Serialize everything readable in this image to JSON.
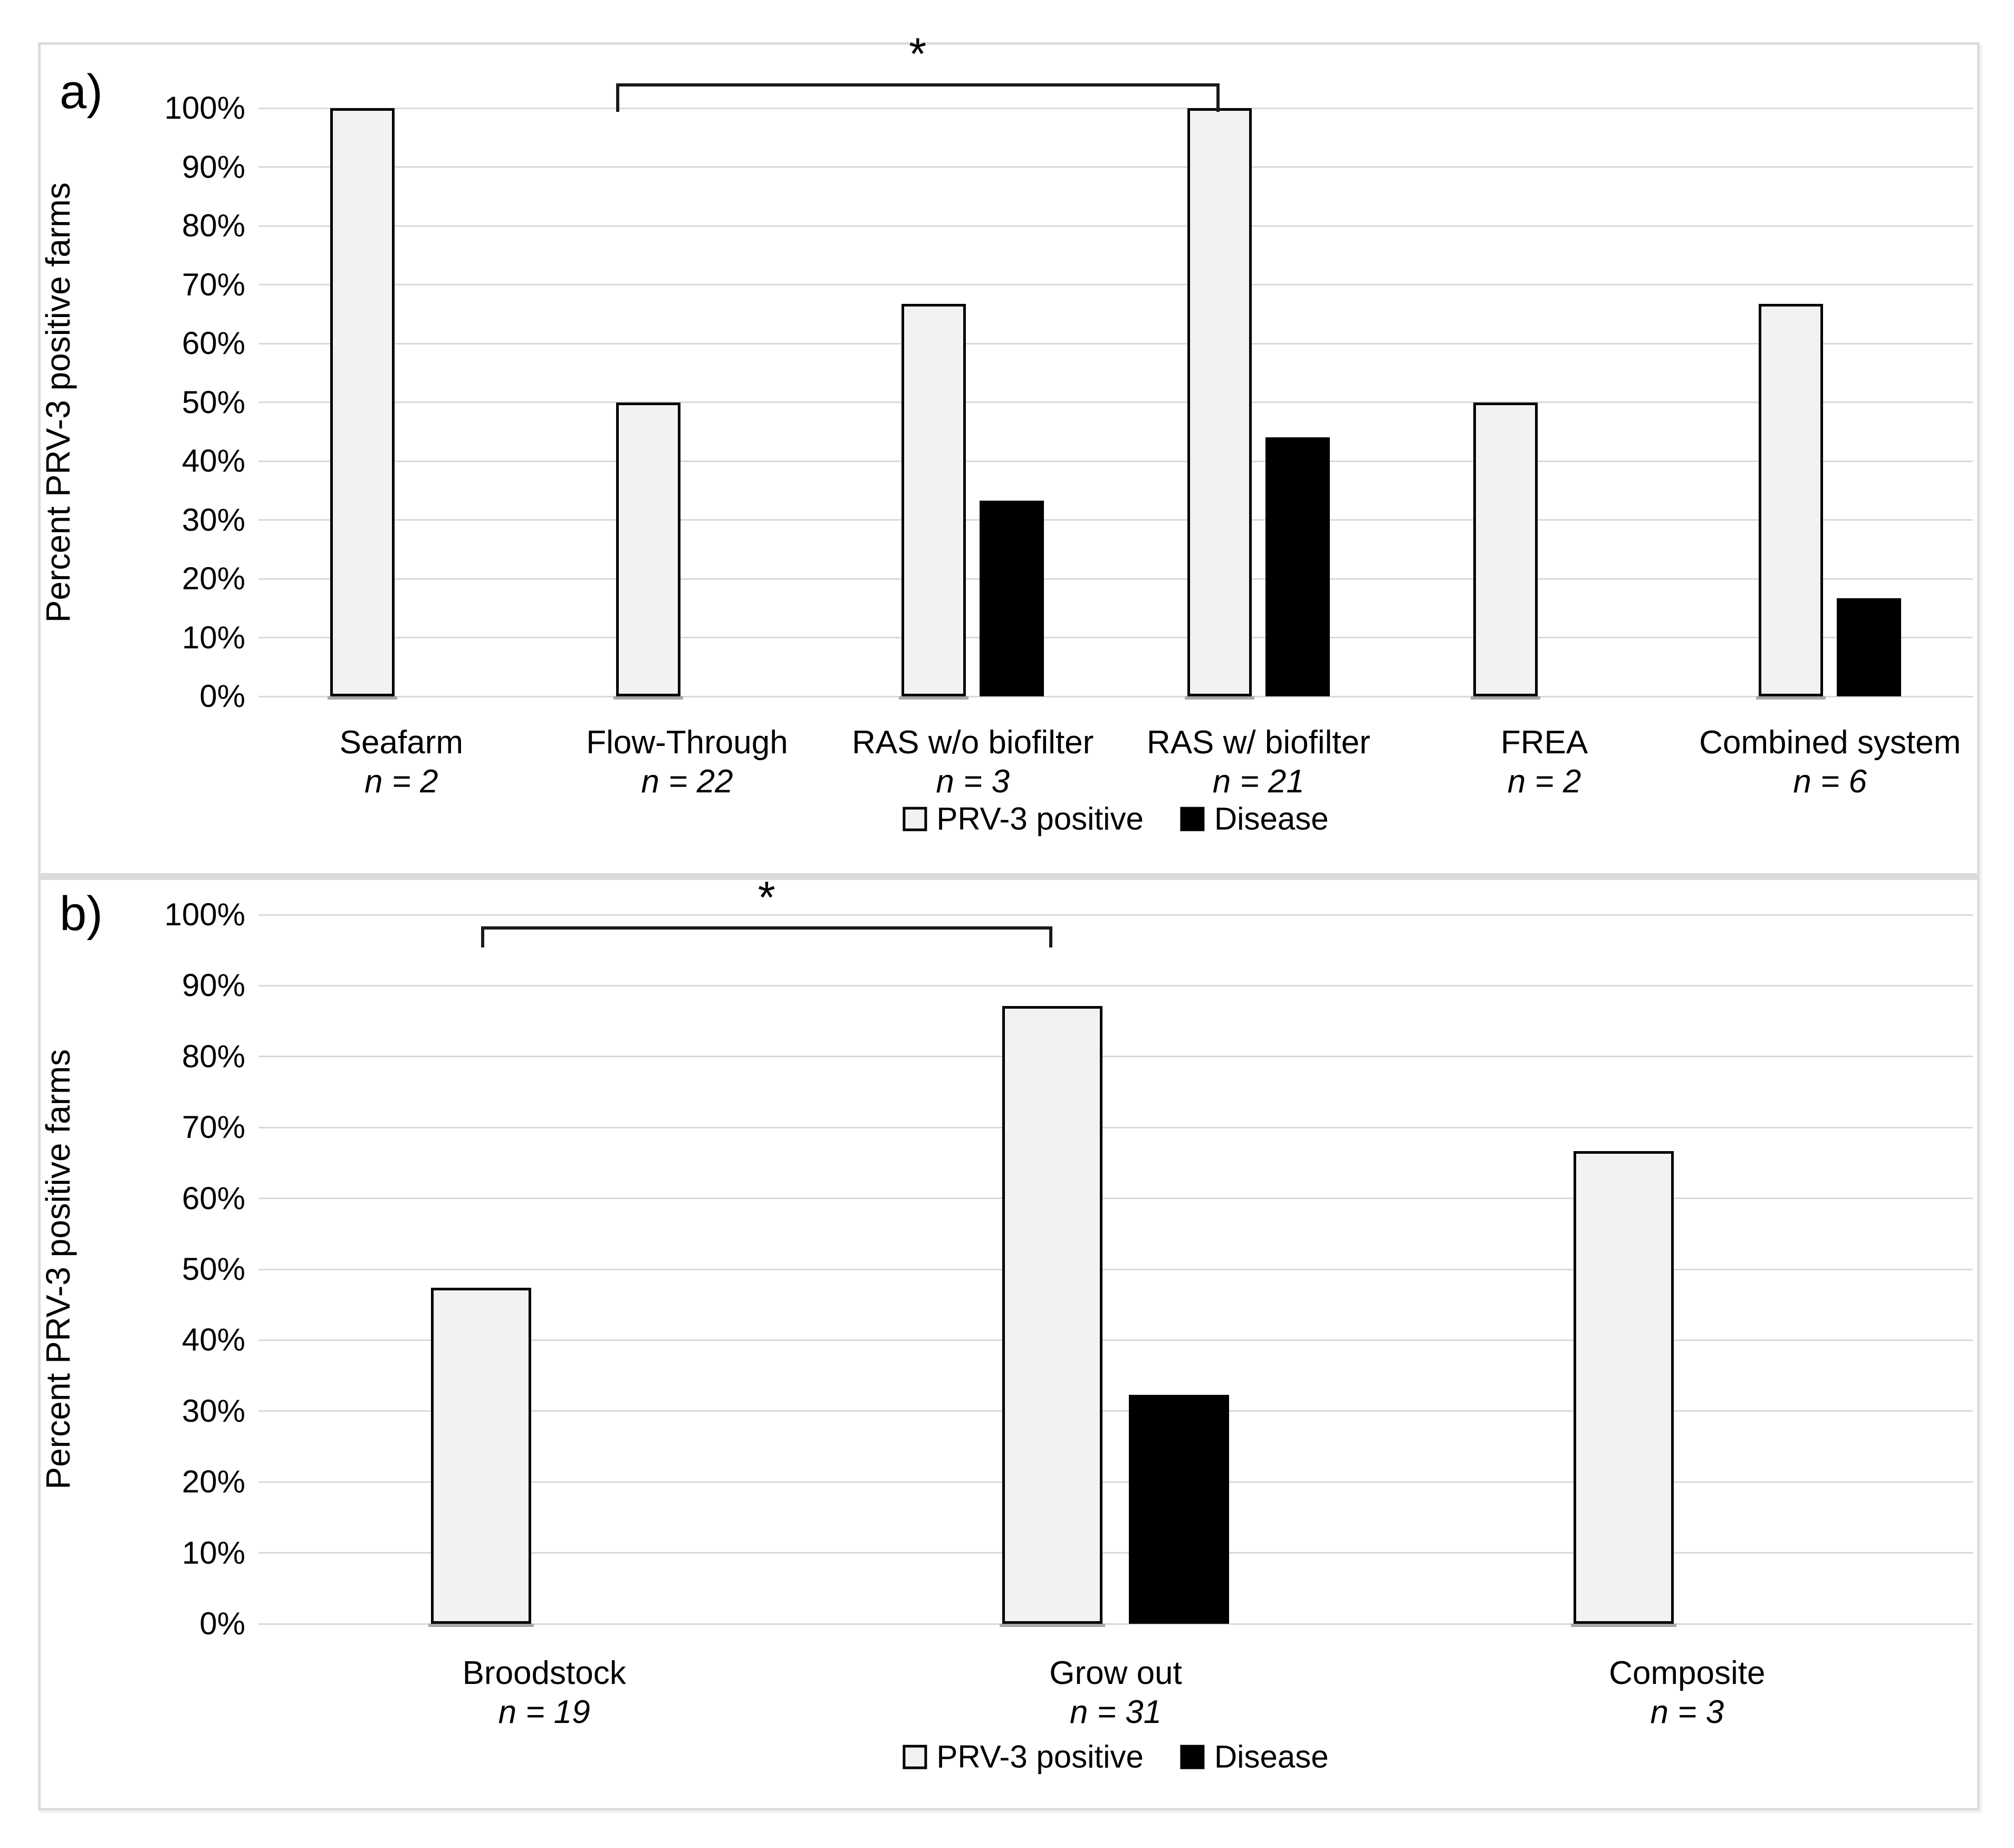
{
  "figure": {
    "panel_a_label": "a)",
    "panel_b_label": "b)",
    "y_axis_title": "Percent PRV-3 positive farms",
    "y_tick_labels": [
      "100%",
      "90%",
      "80%",
      "70%",
      "60%",
      "50%",
      "40%",
      "30%",
      "20%",
      "10%",
      "0%"
    ],
    "legend_items": [
      {
        "key": "prv3",
        "label": "PRV-3 positive"
      },
      {
        "key": "disease",
        "label": "Disease"
      }
    ],
    "significance_symbol": "*"
  },
  "colors": {
    "prv3_bar_fill": "#f2f2f2",
    "bar_border": "#000000",
    "disease_bar_fill": "#000000",
    "gridline": "#d9d9d9",
    "frame_border": "#dcdcdc",
    "text": "#000000",
    "background": "#ffffff"
  },
  "chart_data": [
    {
      "panel": "a",
      "type": "bar",
      "title": "",
      "xlabel": "",
      "ylabel": "Percent PRV-3 positive farms",
      "ylim": [
        0,
        100
      ],
      "ytick_step_pct": 10,
      "grid": "horizontal",
      "legend_position": "bottom",
      "categories": [
        "Seafarm",
        "Flow-Through",
        "RAS w/o biofilter",
        "RAS w/ biofilter",
        "FREA",
        "Combined system"
      ],
      "n_labels": [
        "n = 2",
        "n = 22",
        "n = 3",
        "n = 21",
        "n = 2",
        "n = 6"
      ],
      "series": [
        {
          "name": "PRV-3 positive",
          "values": [
            100,
            50,
            66.7,
            100,
            50,
            66.7
          ]
        },
        {
          "name": "Disease",
          "values": [
            0,
            0,
            33.3,
            44,
            0,
            16.7
          ]
        }
      ],
      "significance": {
        "symbol": "*",
        "from_category": "Flow-Through",
        "to_category": "RAS w/ biofilter"
      }
    },
    {
      "panel": "b",
      "type": "bar",
      "title": "",
      "xlabel": "",
      "ylabel": "Percent PRV-3 positive farms",
      "ylim": [
        0,
        100
      ],
      "ytick_step_pct": 10,
      "grid": "horizontal",
      "legend_position": "bottom",
      "categories": [
        "Broodstock",
        "Grow out",
        "Composite"
      ],
      "n_labels": [
        "n = 19",
        "n = 31",
        "n = 3"
      ],
      "series": [
        {
          "name": "PRV-3 positive",
          "values": [
            47.4,
            87.1,
            66.7
          ]
        },
        {
          "name": "Disease",
          "values": [
            0,
            32.3,
            0
          ]
        }
      ],
      "significance": {
        "symbol": "*",
        "from_category": "Broodstock",
        "to_category": "Grow out"
      }
    }
  ]
}
